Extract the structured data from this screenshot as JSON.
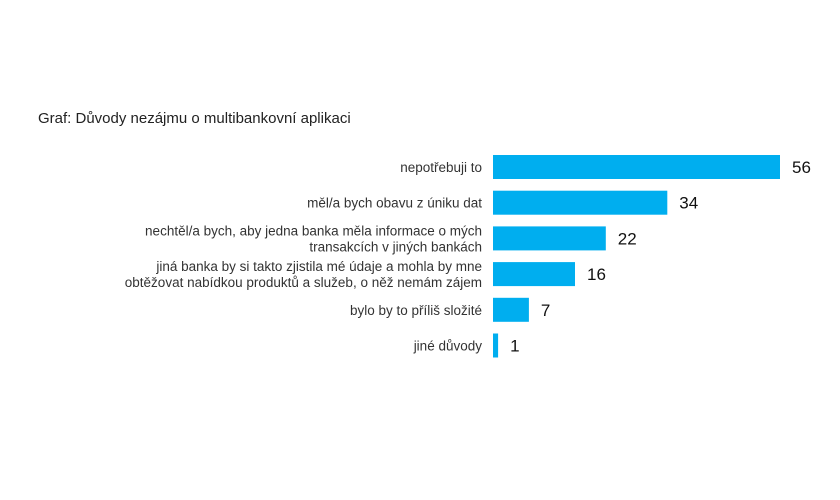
{
  "chart_data": {
    "type": "bar",
    "orientation": "horizontal",
    "title": "Graf: Důvody nezájmu o multibankovní aplikaci",
    "categories": [
      [
        "nepotřebuji to"
      ],
      [
        "měl/a bych obavu z úniku dat"
      ],
      [
        "nechtěl/a bych, aby jedna banka měla informace o mých",
        "transakcích v jiných bankách"
      ],
      [
        "jiná banka by si takto zjistila mé údaje a mohla by mne",
        "obtěžovat nabídkou produktů a služeb, o něž nemám zájem"
      ],
      [
        "bylo by to příliš složité"
      ],
      [
        "jiné důvody"
      ]
    ],
    "values": [
      56,
      34,
      22,
      16,
      7,
      1
    ],
    "xlim": [
      0,
      56
    ],
    "grid": false,
    "legend": "none",
    "bar_color": "#00AEEF"
  }
}
